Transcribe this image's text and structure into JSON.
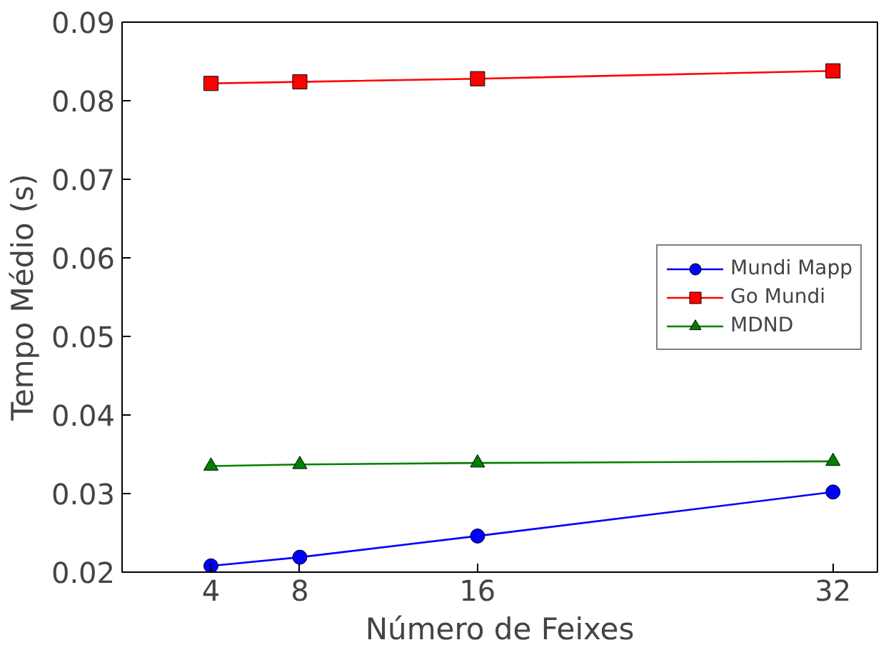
{
  "chart_data": {
    "type": "line",
    "xlabel": "Número de Feixes",
    "ylabel": "Tempo Médio (s)",
    "x": [
      4,
      8,
      16,
      32
    ],
    "xlim": [
      0,
      34
    ],
    "xticks": [
      4,
      8,
      16,
      32
    ],
    "ylim": [
      0.02,
      0.09
    ],
    "yticks": [
      0.02,
      0.03,
      0.04,
      0.05,
      0.06,
      0.07,
      0.08,
      0.09
    ],
    "grid": false,
    "legend": "right",
    "line_style": "solid",
    "series": [
      {
        "name": "Mundi Mapp",
        "color": "#0000ff",
        "marker": "circle",
        "values": [
          0.0208,
          0.0219,
          0.0246,
          0.0302
        ]
      },
      {
        "name": "Go Mundi",
        "color": "#ff0000",
        "marker": "square",
        "values": [
          0.0822,
          0.0824,
          0.0828,
          0.0838
        ]
      },
      {
        "name": "MDND",
        "color": "#008000",
        "marker": "triangle",
        "values": [
          0.0335,
          0.0337,
          0.0339,
          0.0341
        ]
      }
    ]
  }
}
